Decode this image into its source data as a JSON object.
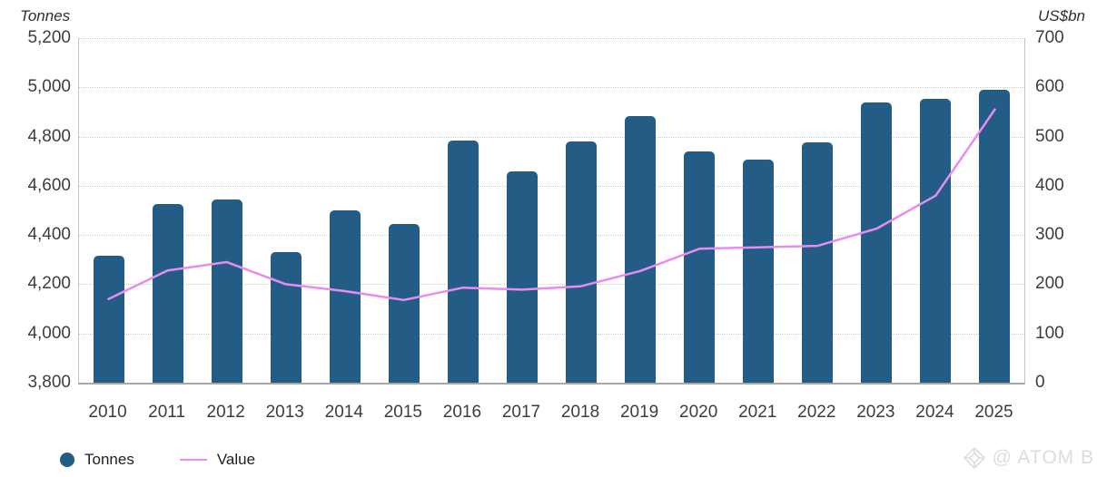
{
  "header": {
    "left_axis_title": "Tonnes",
    "right_axis_title": "US$bn"
  },
  "legend": {
    "items": [
      {
        "label": "Tonnes",
        "swatch": "circle",
        "color": "#235d86"
      },
      {
        "label": "Value",
        "swatch": "line",
        "color": "#e78cf1"
      }
    ]
  },
  "watermark": {
    "icon": "gem-icon",
    "text": "@ ATOM B"
  },
  "colors": {
    "bar": "#235d86",
    "line": "#e78cf1",
    "grid": "#cbcbcb",
    "axis": "#c4c4c4",
    "tick_text": "#3d3d3d"
  },
  "chart_data": {
    "type": "bar",
    "subtype": "bar+line combo, dual axis",
    "categories": [
      "2010",
      "2011",
      "2012",
      "2013",
      "2014",
      "2015",
      "2016",
      "2017",
      "2018",
      "2019",
      "2020",
      "2021",
      "2022",
      "2023",
      "2024",
      "2025"
    ],
    "series": [
      {
        "name": "Tonnes",
        "type": "bar",
        "axis": "left",
        "values": [
          4315,
          4525,
          4545,
          4330,
          4500,
          4445,
          4785,
          4660,
          4780,
          4885,
          4740,
          4705,
          4775,
          4940,
          4955,
          4990
        ]
      },
      {
        "name": "Value",
        "type": "line",
        "axis": "right",
        "values": [
          170,
          228,
          245,
          200,
          186,
          168,
          193,
          189,
          196,
          227,
          272,
          275,
          278,
          313,
          380,
          555
        ]
      }
    ],
    "left_axis": {
      "title": "Tonnes",
      "min": 3800,
      "max": 5200,
      "step": 200,
      "tick_labels": [
        "5,200",
        "5,000",
        "4,800",
        "4,600",
        "4,400",
        "4,200",
        "4,000",
        "3,800"
      ]
    },
    "right_axis": {
      "title": "US$bn",
      "min": 0,
      "max": 700,
      "step": 100,
      "tick_labels": [
        "700",
        "600",
        "500",
        "400",
        "300",
        "200",
        "100",
        "0"
      ]
    },
    "grid": "horizontal dotted",
    "legend_position": "bottom-left",
    "title": ""
  }
}
